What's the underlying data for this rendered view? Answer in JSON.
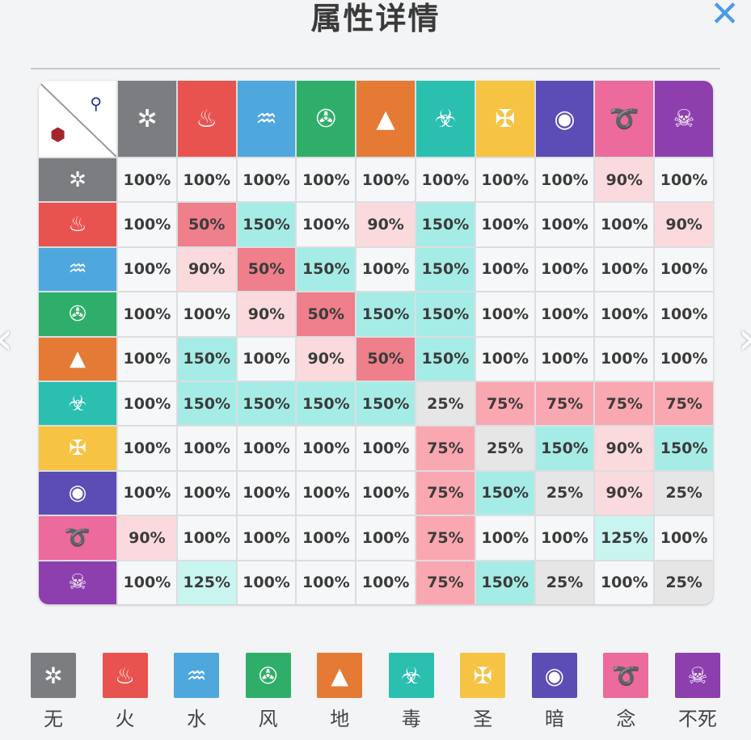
{
  "title": "属性详情",
  "close_icon": "close-icon",
  "nav": {
    "prev_icon": "chevron-left-icon",
    "next_icon": "chevron-right-icon"
  },
  "corner": {
    "attacker_icon": "sword-icon",
    "defender_icon": "shield-icon"
  },
  "elements": [
    {
      "name": "无",
      "color": "#7b7d80",
      "glyph": "✲",
      "icon": "swirl-icon"
    },
    {
      "name": "火",
      "color": "#e9534f",
      "glyph": "♨",
      "icon": "fire-icon"
    },
    {
      "name": "水",
      "color": "#4ea8de",
      "glyph": "♒",
      "icon": "water-drop-icon"
    },
    {
      "name": "风",
      "color": "#2fae6a",
      "glyph": "✇",
      "icon": "fan-icon"
    },
    {
      "name": "地",
      "color": "#e57a35",
      "glyph": "▲",
      "icon": "mountain-icon"
    },
    {
      "name": "毒",
      "color": "#2bbfb0",
      "glyph": "☣",
      "icon": "frog-icon"
    },
    {
      "name": "圣",
      "color": "#f6c343",
      "glyph": "✠",
      "icon": "holy-wings-icon"
    },
    {
      "name": "暗",
      "color": "#5b4db5",
      "glyph": "◉",
      "icon": "eye-icon"
    },
    {
      "name": "念",
      "color": "#ec6a9c",
      "glyph": "➰",
      "icon": "spiral-icon"
    },
    {
      "name": "不死",
      "color": "#8e3fae",
      "glyph": "☠",
      "icon": "skull-icon"
    }
  ],
  "cell_colors": {
    "25%": "#e6e6e7",
    "50%": "#ee7f8b",
    "75%": "#f9a7b0",
    "90%": "#fadadd",
    "100%": "#f6f7f8",
    "125%": "#c9f5f0",
    "150%": "#a6ece6"
  },
  "matrix": [
    [
      "100%",
      "100%",
      "100%",
      "100%",
      "100%",
      "100%",
      "100%",
      "100%",
      "90%",
      "100%"
    ],
    [
      "100%",
      "50%",
      "150%",
      "100%",
      "90%",
      "150%",
      "100%",
      "100%",
      "100%",
      "90%"
    ],
    [
      "100%",
      "90%",
      "50%",
      "150%",
      "100%",
      "150%",
      "100%",
      "100%",
      "100%",
      "100%"
    ],
    [
      "100%",
      "100%",
      "90%",
      "50%",
      "150%",
      "150%",
      "100%",
      "100%",
      "100%",
      "100%"
    ],
    [
      "100%",
      "150%",
      "100%",
      "90%",
      "50%",
      "150%",
      "100%",
      "100%",
      "100%",
      "100%"
    ],
    [
      "100%",
      "150%",
      "150%",
      "150%",
      "150%",
      "25%",
      "75%",
      "75%",
      "75%",
      "75%"
    ],
    [
      "100%",
      "100%",
      "100%",
      "100%",
      "100%",
      "75%",
      "25%",
      "150%",
      "90%",
      "150%"
    ],
    [
      "100%",
      "100%",
      "100%",
      "100%",
      "100%",
      "75%",
      "150%",
      "25%",
      "90%",
      "25%"
    ],
    [
      "90%",
      "100%",
      "100%",
      "100%",
      "100%",
      "75%",
      "100%",
      "100%",
      "125%",
      "100%"
    ],
    [
      "100%",
      "125%",
      "100%",
      "100%",
      "100%",
      "75%",
      "150%",
      "25%",
      "100%",
      "25%"
    ]
  ]
}
